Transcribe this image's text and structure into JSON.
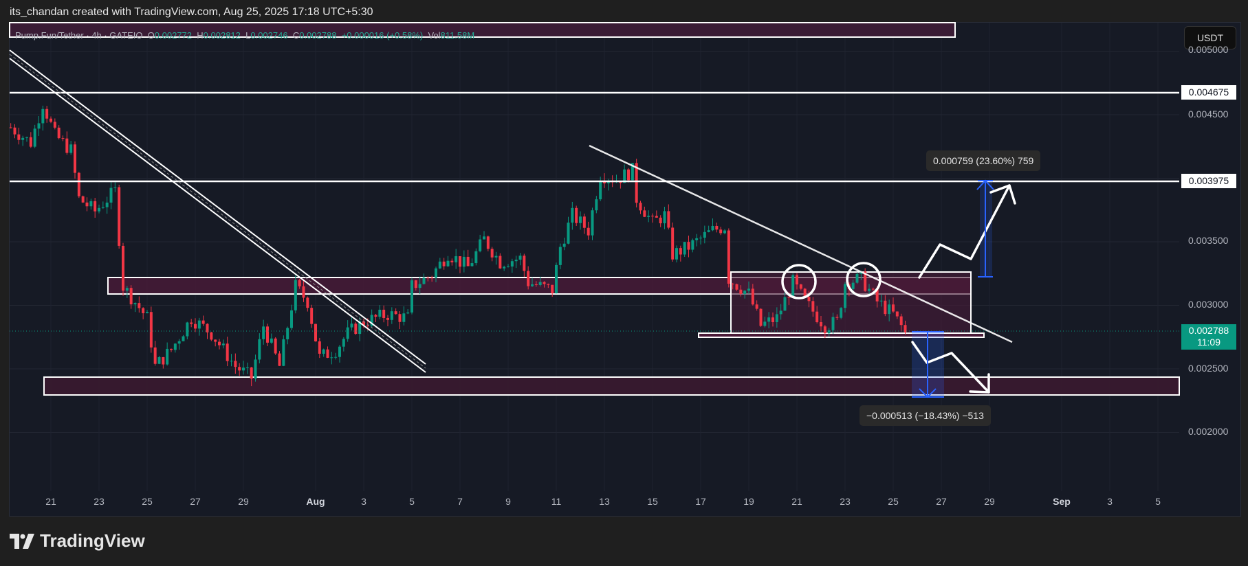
{
  "credit": "its_chandan created with TradingView.com, Aug 25, 2025 17:18 UTC+5:30",
  "legend": {
    "symbol": "Pump.Fun/Tether · 4h · GATEIO",
    "o_label": "O",
    "o": "0.002772",
    "h_label": "H",
    "h": "0.002812",
    "l_label": "L",
    "l": "0.002746",
    "c_label": "C",
    "c": "0.002788",
    "change": "+0.000016 (+0.58%)",
    "vol_label": "Vol",
    "vol": "811.58M"
  },
  "currency_button": "USDT",
  "price_axis": {
    "ticks": [
      "0.005000",
      "0.004500",
      "0.003500",
      "0.003000",
      "0.002500",
      "0.002000"
    ],
    "level_labels": [
      "0.004675",
      "0.003975"
    ],
    "current_price": "0.002788",
    "countdown": "11:09"
  },
  "measures": {
    "up": "0.000759 (23.60%) 759",
    "down": "−0.000513 (−18.43%) −513"
  },
  "brand": "TradingView",
  "colors": {
    "up": "#089981",
    "down": "#f23645",
    "zone": "#4a1a38",
    "measure": "#2962ff"
  },
  "chart_data": {
    "type": "candlestick",
    "interval": "4h",
    "ylim": [
      0.0019,
      0.00505
    ],
    "x_ticks": [
      "21",
      "23",
      "25",
      "27",
      "29",
      "Aug",
      "3",
      "5",
      "7",
      "9",
      "11",
      "13",
      "15",
      "17",
      "19",
      "21",
      "23",
      "25",
      "27",
      "29",
      "Sep",
      "3",
      "5"
    ],
    "grid": true,
    "horizontal_levels": [
      0.004675,
      0.003975
    ],
    "zones": [
      [
        0.00308,
        0.00321
      ],
      [
        0.00227,
        0.00242
      ],
      [
        0.00275,
        0.00326
      ]
    ],
    "approx_close_path": [
      [
        "2025-07-19T08:00",
        0.0044
      ],
      [
        "2025-07-20T04:00",
        0.00428
      ],
      [
        "2025-07-20T16:00",
        0.00459
      ],
      [
        "2025-07-21T04:00",
        0.00434
      ],
      [
        "2025-07-21T20:00",
        0.00422
      ],
      [
        "2025-07-22T04:00",
        0.00384
      ],
      [
        "2025-07-22T20:00",
        0.00374
      ],
      [
        "2025-07-23T16:00",
        0.0039
      ],
      [
        "2025-07-24T00:00",
        0.00315
      ],
      [
        "2025-07-25T00:00",
        0.0029
      ],
      [
        "2025-07-25T08:00",
        0.00252
      ],
      [
        "2025-07-26T00:00",
        0.00265
      ],
      [
        "2025-07-26T20:00",
        0.0029
      ],
      [
        "2025-07-27T16:00",
        0.00278
      ],
      [
        "2025-07-28T16:00",
        0.00252
      ],
      [
        "2025-07-29T08:00",
        0.00243
      ],
      [
        "2025-07-29T20:00",
        0.00284
      ],
      [
        "2025-07-30T12:00",
        0.00252
      ],
      [
        "2025-07-31T04:00",
        0.00315
      ],
      [
        "2025-07-31T16:00",
        0.00303
      ],
      [
        "2025-08-01T04:00",
        0.00259
      ],
      [
        "2025-08-01T20:00",
        0.00265
      ],
      [
        "2025-08-02T08:00",
        0.00278
      ],
      [
        "2025-08-03T00:00",
        0.00287
      ],
      [
        "2025-08-04T00:00",
        0.00293
      ],
      [
        "2025-08-04T20:00",
        0.0029
      ],
      [
        "2025-08-05T00:00",
        0.00315
      ],
      [
        "2025-08-05T20:00",
        0.00324
      ],
      [
        "2025-08-06T12:00",
        0.00341
      ],
      [
        "2025-08-07T08:00",
        0.0033
      ],
      [
        "2025-08-08T00:00",
        0.00352
      ],
      [
        "2025-08-08T16:00",
        0.00334
      ],
      [
        "2025-08-09T12:00",
        0.00337
      ],
      [
        "2025-08-09T20:00",
        0.00318
      ],
      [
        "2025-08-10T20:00",
        0.00312
      ],
      [
        "2025-08-11T04:00",
        0.00346
      ],
      [
        "2025-08-11T16:00",
        0.00371
      ],
      [
        "2025-08-12T08:00",
        0.00359
      ],
      [
        "2025-08-12T20:00",
        0.00403
      ],
      [
        "2025-08-13T12:00",
        0.00399
      ],
      [
        "2025-08-14T04:00",
        0.00406
      ],
      [
        "2025-08-14T08:00",
        0.00384
      ],
      [
        "2025-08-15T00:00",
        0.00365
      ],
      [
        "2025-08-15T12:00",
        0.00371
      ],
      [
        "2025-08-15T20:00",
        0.0034
      ],
      [
        "2025-08-16T12:00",
        0.00346
      ],
      [
        "2025-08-17T12:00",
        0.00359
      ],
      [
        "2025-08-18T00:00",
        0.00362
      ],
      [
        "2025-08-18T04:00",
        0.00321
      ],
      [
        "2025-08-19T00:00",
        0.00309
      ],
      [
        "2025-08-19T12:00",
        0.00284
      ],
      [
        "2025-08-20T04:00",
        0.0029
      ],
      [
        "2025-08-20T20:00",
        0.00318
      ],
      [
        "2025-08-21T08:00",
        0.00303
      ],
      [
        "2025-08-22T04:00",
        0.00284
      ],
      [
        "2025-08-22T16:00",
        0.00287
      ],
      [
        "2025-08-23T00:00",
        0.00318
      ],
      [
        "2025-08-23T16:00",
        0.00321
      ],
      [
        "2025-08-24T08:00",
        0.00303
      ],
      [
        "2025-08-25T00:00",
        0.00293
      ],
      [
        "2025-08-25T12:00",
        0.002788
      ]
    ]
  }
}
